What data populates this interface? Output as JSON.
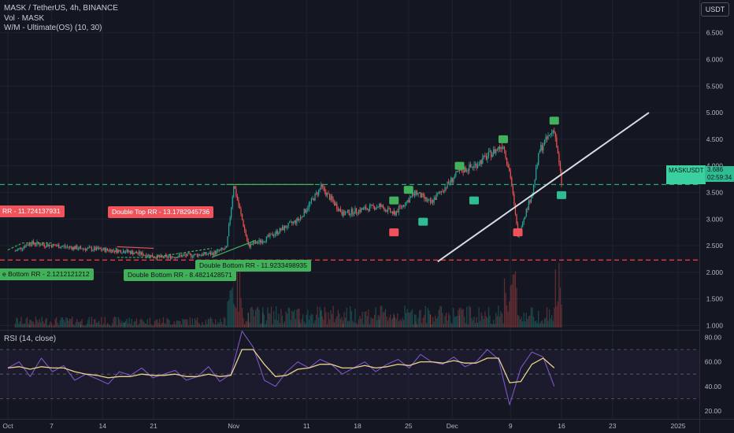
{
  "header": {
    "title": "MASK / TetherUS, 4h, BINANCE",
    "volume_label": "Vol · MASK",
    "indicator_label": "W/M - Ultimate(OS) (10, 30)",
    "rsi_label": "RSI (14, close)"
  },
  "currency_button": "USDT",
  "price_label": {
    "symbol": "MASKUSDT",
    "value": "3.686",
    "countdown": "02:59:34"
  },
  "colors": {
    "background": "#141722",
    "red": "#f0545a",
    "green": "#43b05c",
    "teal": "#3ad0a0",
    "rsi": "#7e57c2",
    "rsi_ma": "#e8d28a"
  },
  "annotations": [
    {
      "text": "RR - 11.724137931",
      "kind": "red"
    },
    {
      "text": "Double Top RR - 13.1782945736",
      "kind": "red"
    },
    {
      "text": "e Bottom RR - 2.1212121212",
      "kind": "green"
    },
    {
      "text": "Double Bottom RR - 8.4821428571",
      "kind": "green"
    },
    {
      "text": "Double Bottom RR - 11.9233498935",
      "kind": "green"
    }
  ],
  "chart_data": [
    {
      "type": "candlestick",
      "title": "MASK / TetherUS, 4h, BINANCE",
      "x_tick_labels": [
        "Oct",
        "7",
        "14",
        "21",
        "Nov",
        "11",
        "18",
        "25",
        "Dec",
        "9",
        "16",
        "23",
        "2025"
      ],
      "y_tick_labels": [
        "6.500",
        "6.000",
        "5.500",
        "5.000",
        "4.500",
        "4.000",
        "3.500",
        "3.000",
        "2.500",
        "2.000",
        "1.500",
        "1.000"
      ],
      "ylim": [
        0.7,
        6.6
      ],
      "last_price": 3.686,
      "key_points": [
        {
          "x": "Oct 1",
          "y": 2.4
        },
        {
          "x": "Oct 3",
          "y": 2.55
        },
        {
          "x": "Oct 10",
          "y": 2.45
        },
        {
          "x": "Oct 16",
          "y": 2.4
        },
        {
          "x": "Oct 21",
          "y": 2.28
        },
        {
          "x": "Oct 28",
          "y": 2.35
        },
        {
          "x": "Oct 30",
          "y": 2.45
        },
        {
          "x": "Oct 31",
          "y": 3.65
        },
        {
          "x": "Nov 2",
          "y": 2.5
        },
        {
          "x": "Nov 4",
          "y": 2.6
        },
        {
          "x": "Nov 9",
          "y": 3.0
        },
        {
          "x": "Nov 12",
          "y": 3.6
        },
        {
          "x": "Nov 15",
          "y": 3.1
        },
        {
          "x": "Nov 20",
          "y": 3.25
        },
        {
          "x": "Nov 22",
          "y": 3.1
        },
        {
          "x": "Nov 25",
          "y": 3.5
        },
        {
          "x": "Nov 27",
          "y": 3.3
        },
        {
          "x": "Dec 1",
          "y": 3.9
        },
        {
          "x": "Dec 3",
          "y": 4.0
        },
        {
          "x": "Dec 5",
          "y": 4.2
        },
        {
          "x": "Dec 7",
          "y": 4.4
        },
        {
          "x": "Dec 8",
          "y": 3.8
        },
        {
          "x": "Dec 9",
          "y": 2.7
        },
        {
          "x": "Dec 11",
          "y": 3.5
        },
        {
          "x": "Dec 12",
          "y": 4.3
        },
        {
          "x": "Dec 14",
          "y": 4.7
        },
        {
          "x": "Dec 15",
          "y": 3.686
        }
      ],
      "horizontal_levels": [
        {
          "y": 3.65,
          "style": "dashed",
          "color": "green"
        },
        {
          "y": 2.23,
          "style": "dashed",
          "color": "red"
        }
      ],
      "trendline": {
        "from": {
          "x": "Nov 28",
          "y": 2.2
        },
        "to": {
          "x": "Dec 27",
          "y": 5.0
        }
      },
      "signals": [
        {
          "x": "Nov 22",
          "y": 3.35,
          "kind": "green"
        },
        {
          "x": "Nov 24",
          "y": 3.55,
          "kind": "green"
        },
        {
          "x": "Dec 1",
          "y": 4.0,
          "kind": "green"
        },
        {
          "x": "Dec 7",
          "y": 4.5,
          "kind": "green"
        },
        {
          "x": "Dec 14",
          "y": 4.85,
          "kind": "green"
        },
        {
          "x": "Nov 22",
          "y": 2.75,
          "kind": "red"
        },
        {
          "x": "Dec 9",
          "y": 2.75,
          "kind": "red"
        },
        {
          "x": "Nov 26",
          "y": 2.95,
          "kind": "teal"
        },
        {
          "x": "Dec 3",
          "y": 3.35,
          "kind": "teal"
        },
        {
          "x": "Dec 15",
          "y": 3.45,
          "kind": "teal"
        }
      ]
    },
    {
      "type": "line",
      "title": "RSI (14, close)",
      "y_tick_labels": [
        "80.00",
        "60.00",
        "40.00",
        "20.00"
      ],
      "ylim": [
        15,
        88
      ],
      "bands": [
        70,
        50,
        30
      ],
      "series": [
        {
          "values": [
            55,
            60,
            48,
            63,
            52,
            57,
            45,
            50,
            46,
            42,
            52,
            49,
            55,
            47,
            50,
            53,
            45,
            48,
            56,
            44,
            50,
            85,
            72,
            45,
            40,
            52,
            60,
            55,
            62,
            58,
            50,
            55,
            60,
            52,
            58,
            62,
            55,
            66,
            60,
            58,
            64,
            56,
            60,
            70,
            62,
            25,
            55,
            68,
            64,
            40
          ]
        },
        {
          "values": [
            55,
            56,
            54,
            56,
            55,
            55,
            52,
            50,
            49,
            47,
            48,
            48,
            50,
            49,
            49,
            50,
            48,
            48,
            50,
            48,
            49,
            70,
            70,
            58,
            48,
            49,
            54,
            55,
            58,
            58,
            55,
            55,
            57,
            55,
            56,
            58,
            57,
            60,
            60,
            59,
            61,
            59,
            59,
            63,
            63,
            43,
            44,
            58,
            63,
            55
          ]
        }
      ]
    }
  ]
}
